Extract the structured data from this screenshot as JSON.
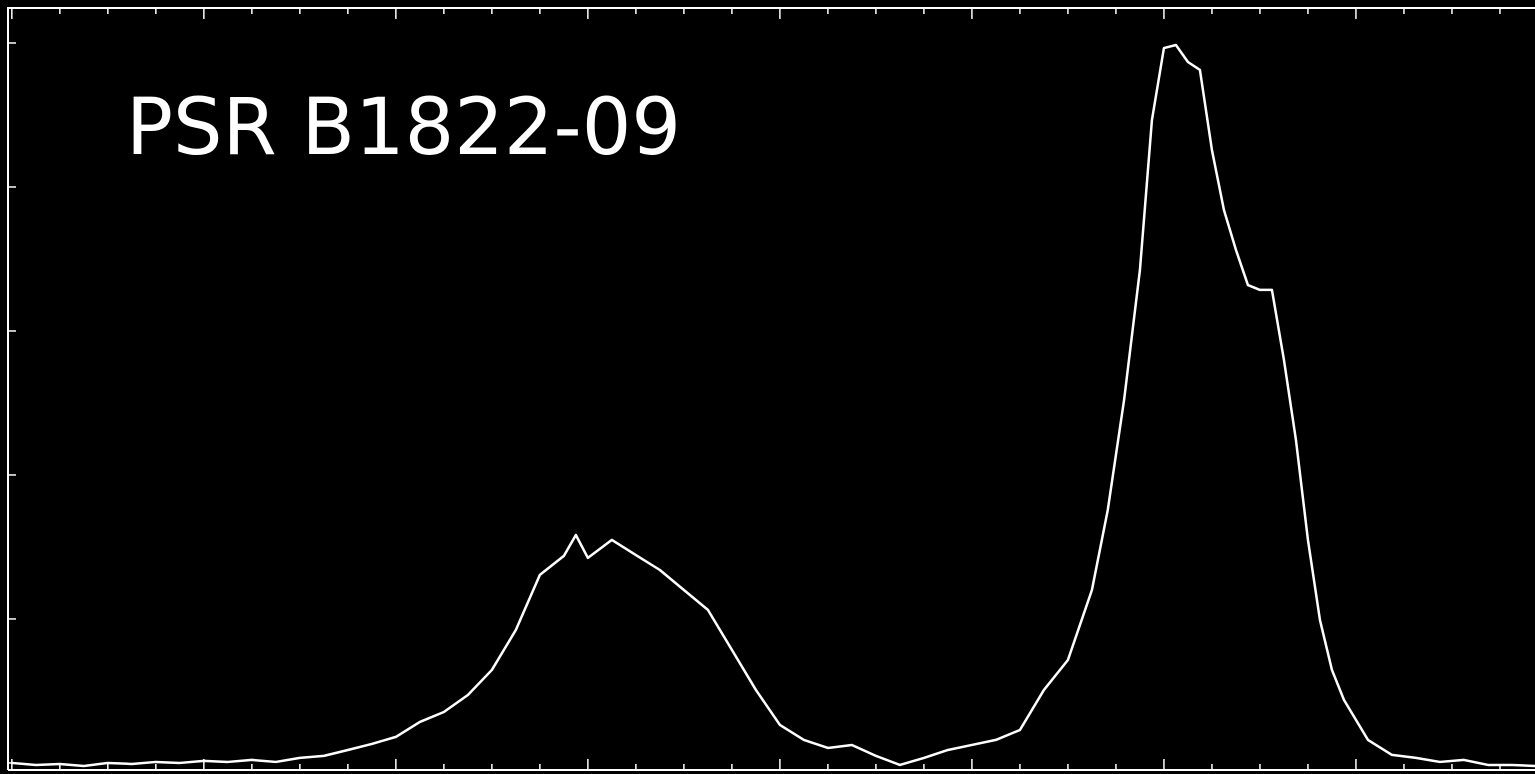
{
  "chart_data": {
    "type": "line",
    "title": "PSR B1822-09",
    "x": [
      0,
      0.5,
      1,
      1.5,
      2,
      2.5,
      3,
      3.5,
      4,
      4.5,
      5,
      5.5,
      6,
      6.5,
      7,
      7.5,
      8,
      8.5,
      9,
      9.5,
      10,
      10.5,
      11,
      11.5,
      11.75,
      12,
      12.5,
      13,
      13.5,
      14,
      14.5,
      15,
      15.5,
      16,
      16.5,
      17,
      17.5,
      18,
      18.5,
      19,
      19.5,
      20,
      20.5,
      21,
      21.5,
      22,
      22.5,
      22.83,
      23.17,
      23.5,
      23.75,
      24,
      24.25,
      24.5,
      24.75,
      25,
      25.25,
      25.5,
      25.75,
      26,
      26.25,
      26.5,
      26.75,
      27,
      27.25,
      27.5,
      27.75,
      28.25,
      28.75,
      29.25,
      29.75,
      30.25,
      30.75,
      31.25,
      31.73
    ],
    "series": [
      {
        "color": "#ffffff",
        "values": [
          0,
          -0.14,
          -0.07,
          -0.21,
          0,
          -0.07,
          0.07,
          0,
          0.14,
          0.07,
          0.21,
          0.07,
          0.35,
          0.49,
          0.9,
          1.32,
          1.81,
          2.85,
          3.54,
          4.72,
          6.46,
          9.24,
          13.06,
          14.38,
          15.83,
          14.24,
          15.49,
          14.44,
          13.4,
          12.01,
          10.63,
          7.85,
          5.07,
          2.64,
          1.6,
          1.04,
          1.25,
          0.49,
          -0.14,
          0.35,
          0.9,
          1.25,
          1.6,
          2.29,
          5.07,
          7.15,
          12.01,
          17.57,
          25.21,
          34.24,
          44.65,
          49.65,
          49.86,
          48.68,
          48.13,
          42.57,
          38.4,
          35.63,
          33.19,
          32.85,
          32.85,
          27.99,
          22.43,
          15.49,
          9.93,
          6.46,
          4.38,
          1.6,
          0.56,
          0.35,
          0.07,
          0.21,
          -0.14,
          -0.14,
          -0.21
        ]
      }
    ],
    "xlim": [
      -0.08,
      31.73
    ],
    "xticks": [
      0,
      1,
      2,
      3,
      4,
      5,
      6,
      7,
      8,
      9,
      10,
      11,
      12,
      13,
      14,
      15,
      16,
      17,
      18,
      19,
      20,
      21,
      22,
      23,
      24,
      25,
      26,
      27,
      28,
      29,
      30,
      31
    ],
    "ylim": [
      -0.49,
      52.43
    ],
    "yticks": [
      0,
      10,
      20,
      30,
      40,
      50
    ]
  }
}
